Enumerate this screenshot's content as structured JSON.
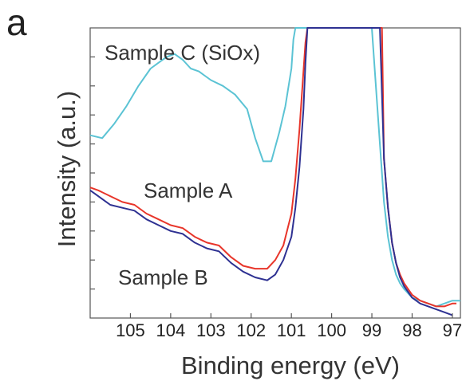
{
  "chart_data": {
    "type": "line",
    "panel_label": "a",
    "title": "",
    "xlabel": "Binding energy (eV)",
    "ylabel": "Intensity (a.u.)",
    "xlim": [
      106,
      96.8
    ],
    "x_reversed": true,
    "ylim": [
      0,
      100
    ],
    "y_tick_labels_shown": false,
    "x_ticks": [
      105,
      104,
      103,
      102,
      101,
      100,
      99,
      98,
      97
    ],
    "x_tick_labels": [
      "105",
      "104",
      "103",
      "102",
      "101",
      "100",
      "99",
      "98",
      "97"
    ],
    "grid": false,
    "legend": "none",
    "annotations": [
      {
        "text": "Sample C (SiOx)",
        "color": "#333333"
      },
      {
        "text": "Sample A",
        "color": "#333333"
      },
      {
        "text": "Sample B",
        "color": "#333333"
      }
    ],
    "series": [
      {
        "name": "Sample C (SiOx)",
        "color": "#5bc3d4",
        "x": [
          106,
          105.7,
          105.4,
          105.1,
          104.8,
          104.5,
          104.3,
          104.1,
          103.9,
          103.7,
          103.5,
          103.3,
          103.0,
          102.7,
          102.4,
          102.1,
          101.9,
          101.7,
          101.5,
          101.3,
          101.15,
          101.0,
          100.95,
          100.9,
          99.0,
          98.8,
          98.7,
          98.6,
          98.5,
          98.4,
          98.3,
          98.2,
          98.0,
          97.8,
          97.6,
          97.4,
          97.2,
          97.0,
          96.8
        ],
        "y": [
          63,
          62,
          67,
          73,
          80,
          86,
          88,
          90,
          91,
          89,
          86,
          85,
          82,
          80,
          77,
          72,
          62,
          54,
          54,
          64,
          73,
          86,
          96,
          100,
          100,
          60,
          40,
          28,
          20,
          15,
          12,
          10,
          7,
          6,
          5,
          4,
          5,
          6,
          6
        ]
      },
      {
        "name": "Sample A",
        "color": "#e8352a",
        "x": [
          106,
          105.8,
          105.5,
          105.2,
          104.9,
          104.6,
          104.3,
          104.0,
          103.7,
          103.4,
          103.1,
          102.8,
          102.5,
          102.2,
          101.9,
          101.6,
          101.4,
          101.2,
          101.0,
          100.9,
          100.8,
          100.7,
          100.65,
          100.6,
          98.75,
          98.7,
          98.6,
          98.5,
          98.4,
          98.3,
          98.2,
          98.1,
          98.0,
          97.8,
          97.6,
          97.4,
          97.2,
          97.0,
          96.9
        ],
        "y": [
          45,
          44,
          42,
          40,
          39,
          36,
          34,
          32,
          31,
          28,
          26,
          25,
          21,
          18,
          17,
          17,
          20,
          25,
          36,
          48,
          65,
          85,
          95,
          100,
          100,
          55,
          38,
          26,
          19,
          15,
          12,
          10,
          8,
          6,
          5,
          4,
          4,
          5,
          5
        ]
      },
      {
        "name": "Sample B",
        "color": "#2e3192",
        "x": [
          106,
          105.8,
          105.5,
          105.2,
          104.9,
          104.6,
          104.3,
          104.0,
          103.7,
          103.4,
          103.1,
          102.8,
          102.5,
          102.2,
          101.9,
          101.6,
          101.4,
          101.2,
          101.0,
          100.9,
          100.8,
          100.7,
          100.65,
          100.6,
          98.8,
          98.7,
          98.6,
          98.5,
          98.4,
          98.3,
          98.2,
          98.1,
          98.0,
          97.8,
          97.6,
          97.4,
          97.2,
          97.0
        ],
        "y": [
          44,
          42,
          39,
          38,
          37,
          34,
          32,
          30,
          29,
          26,
          24,
          23,
          19,
          16,
          14,
          13,
          15,
          20,
          28,
          38,
          52,
          72,
          88,
          100,
          100,
          55,
          38,
          26,
          19,
          14,
          11,
          9,
          7,
          5,
          4,
          3,
          2,
          1
        ]
      }
    ]
  }
}
